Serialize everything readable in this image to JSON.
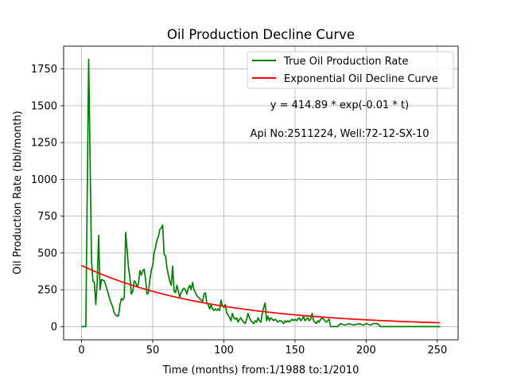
{
  "chart_data": {
    "type": "line",
    "title": "Oil Production Decline Curve",
    "xlabel": "Time (months) from:1/1988 to:1/2010",
    "ylabel": "Oil Production Rate (bbl/month)",
    "xlim": [
      -12.6,
      264.6
    ],
    "ylim": [
      -90,
      1905
    ],
    "xticks": [
      0,
      50,
      100,
      150,
      200,
      250
    ],
    "yticks": [
      0,
      250,
      500,
      750,
      1000,
      1250,
      1500,
      1750
    ],
    "grid": true,
    "legend_position": "top-right",
    "annotations": [
      {
        "text": "y = 414.89 * exp(-0.01 * t)",
        "x": 180,
        "y": 1500
      },
      {
        "text": "Api No:2511224, Well:72-12-SX-10",
        "x": 180,
        "y": 1310
      }
    ],
    "series": [
      {
        "name": "True Oil Production Rate",
        "color": "#008000",
        "points": [
          [
            0,
            0
          ],
          [
            3,
            0
          ],
          [
            5,
            1815
          ],
          [
            7,
            450
          ],
          [
            8,
            310
          ],
          [
            9,
            300
          ],
          [
            10,
            150
          ],
          [
            11,
            300
          ],
          [
            12,
            620
          ],
          [
            13,
            250
          ],
          [
            14,
            320
          ],
          [
            16,
            310
          ],
          [
            18,
            250
          ],
          [
            20,
            180
          ],
          [
            22,
            130
          ],
          [
            23,
            90
          ],
          [
            24,
            80
          ],
          [
            25,
            70
          ],
          [
            26,
            75
          ],
          [
            27,
            150
          ],
          [
            28,
            190
          ],
          [
            29,
            180
          ],
          [
            30,
            200
          ],
          [
            31,
            640
          ],
          [
            32,
            520
          ],
          [
            33,
            400
          ],
          [
            34,
            330
          ],
          [
            35,
            220
          ],
          [
            36,
            240
          ],
          [
            37,
            310
          ],
          [
            38,
            300
          ],
          [
            39,
            270
          ],
          [
            40,
            290
          ],
          [
            41,
            380
          ],
          [
            42,
            350
          ],
          [
            43,
            380
          ],
          [
            44,
            390
          ],
          [
            45,
            320
          ],
          [
            46,
            220
          ],
          [
            47,
            230
          ],
          [
            48,
            320
          ],
          [
            49,
            380
          ],
          [
            50,
            420
          ],
          [
            51,
            500
          ],
          [
            52,
            540
          ],
          [
            53,
            590
          ],
          [
            54,
            610
          ],
          [
            55,
            660
          ],
          [
            56,
            670
          ],
          [
            57,
            690
          ],
          [
            58,
            490
          ],
          [
            59,
            480
          ],
          [
            60,
            400
          ],
          [
            61,
            350
          ],
          [
            62,
            310
          ],
          [
            63,
            280
          ],
          [
            64,
            410
          ],
          [
            65,
            240
          ],
          [
            66,
            230
          ],
          [
            67,
            280
          ],
          [
            68,
            240
          ],
          [
            69,
            200
          ],
          [
            70,
            230
          ],
          [
            71,
            250
          ],
          [
            72,
            260
          ],
          [
            73,
            250
          ],
          [
            74,
            220
          ],
          [
            75,
            260
          ],
          [
            76,
            280
          ],
          [
            77,
            250
          ],
          [
            78,
            300
          ],
          [
            79,
            250
          ],
          [
            80,
            230
          ],
          [
            81,
            210
          ],
          [
            82,
            200
          ],
          [
            83,
            190
          ],
          [
            84,
            180
          ],
          [
            85,
            170
          ],
          [
            86,
            220
          ],
          [
            87,
            230
          ],
          [
            88,
            160
          ],
          [
            89,
            150
          ],
          [
            90,
            120
          ],
          [
            91,
            150
          ],
          [
            92,
            120
          ],
          [
            93,
            110
          ],
          [
            94,
            120
          ],
          [
            95,
            110
          ],
          [
            96,
            120
          ],
          [
            97,
            110
          ],
          [
            98,
            180
          ],
          [
            99,
            140
          ],
          [
            100,
            130
          ],
          [
            101,
            150
          ],
          [
            102,
            90
          ],
          [
            103,
            80
          ],
          [
            104,
            60
          ],
          [
            105,
            40
          ],
          [
            106,
            90
          ],
          [
            107,
            60
          ],
          [
            108,
            50
          ],
          [
            109,
            60
          ],
          [
            110,
            30
          ],
          [
            111,
            50
          ],
          [
            112,
            60
          ],
          [
            113,
            40
          ],
          [
            114,
            30
          ],
          [
            115,
            20
          ],
          [
            116,
            50
          ],
          [
            117,
            90
          ],
          [
            118,
            60
          ],
          [
            119,
            40
          ],
          [
            120,
            30
          ],
          [
            121,
            20
          ],
          [
            122,
            40
          ],
          [
            123,
            30
          ],
          [
            124,
            60
          ],
          [
            125,
            40
          ],
          [
            126,
            30
          ],
          [
            127,
            90
          ],
          [
            128,
            130
          ],
          [
            129,
            160
          ],
          [
            130,
            40
          ],
          [
            131,
            70
          ],
          [
            132,
            40
          ],
          [
            133,
            60
          ],
          [
            134,
            50
          ],
          [
            135,
            40
          ],
          [
            136,
            50
          ],
          [
            137,
            40
          ],
          [
            138,
            30
          ],
          [
            139,
            40
          ],
          [
            140,
            40
          ],
          [
            141,
            30
          ],
          [
            142,
            20
          ],
          [
            143,
            40
          ],
          [
            144,
            30
          ],
          [
            145,
            40
          ],
          [
            146,
            30
          ],
          [
            147,
            40
          ],
          [
            148,
            50
          ],
          [
            149,
            40
          ],
          [
            150,
            50
          ],
          [
            151,
            40
          ],
          [
            152,
            50
          ],
          [
            153,
            60
          ],
          [
            154,
            40
          ],
          [
            155,
            50
          ],
          [
            156,
            70
          ],
          [
            157,
            40
          ],
          [
            158,
            50
          ],
          [
            159,
            60
          ],
          [
            160,
            40
          ],
          [
            161,
            50
          ],
          [
            162,
            90
          ],
          [
            163,
            40
          ],
          [
            164,
            30
          ],
          [
            165,
            20
          ],
          [
            166,
            40
          ],
          [
            167,
            30
          ],
          [
            168,
            50
          ],
          [
            169,
            60
          ],
          [
            170,
            50
          ],
          [
            172,
            30
          ],
          [
            174,
            50
          ],
          [
            175,
            0
          ],
          [
            180,
            0
          ],
          [
            182,
            20
          ],
          [
            185,
            10
          ],
          [
            188,
            20
          ],
          [
            191,
            10
          ],
          [
            195,
            20
          ],
          [
            198,
            10
          ],
          [
            200,
            20
          ],
          [
            203,
            10
          ],
          [
            205,
            20
          ],
          [
            208,
            20
          ],
          [
            210,
            0
          ],
          [
            252,
            0
          ]
        ]
      },
      {
        "name": "Exponential Oil Decline Curve",
        "color": "#ff0000",
        "equation": {
          "a": 414.89,
          "b": -0.011
        },
        "x_range": [
          0,
          252
        ]
      }
    ]
  }
}
